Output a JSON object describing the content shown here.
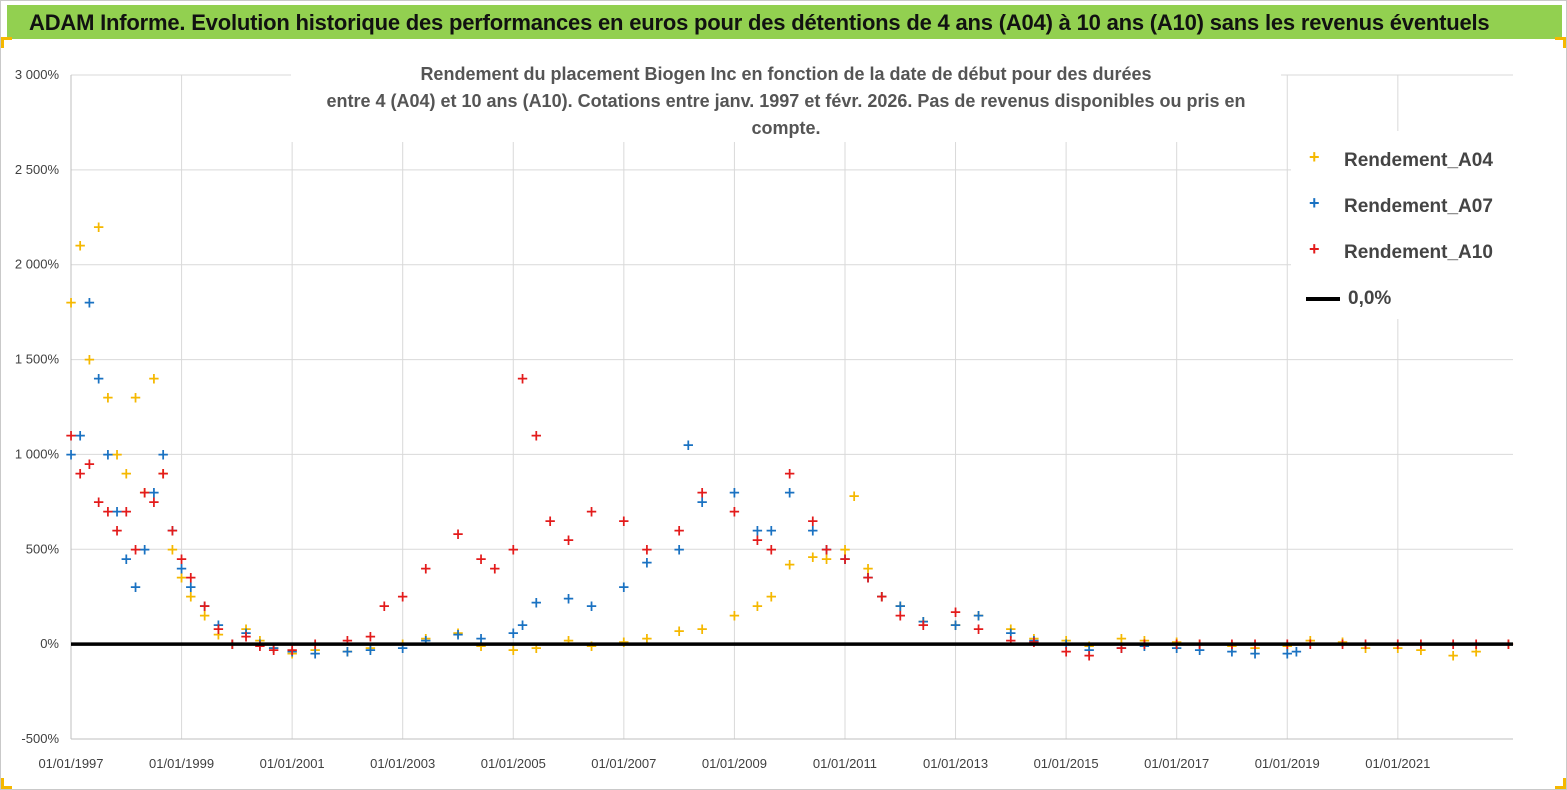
{
  "banner": {
    "title": "ADAM Informe. Evolution historique des performances en euros pour des détentions de 4 ans (A04) à 10 ans (A10) sans les revenus éventuels"
  },
  "chart_data": {
    "type": "scatter",
    "title_line1": "Rendement du placement Biogen Inc en fonction de la date de début pour des durées",
    "title_line2": "entre 4 (A04) et 10 ans (A10).  Cotations entre janv. 1997 et févr. 2026.  Pas de revenus disponibles ou pris en compte.",
    "xlim": [
      "1997-01-01",
      "2023-02-01"
    ],
    "ylim": [
      -500,
      3000
    ],
    "y_ticks": [
      -500,
      0,
      500,
      1000,
      1500,
      2000,
      2500,
      3000
    ],
    "y_tick_labels": [
      "-500%",
      "0%",
      "500%",
      "1 000%",
      "1 500%",
      "2 000%",
      "2 500%",
      "3 000%"
    ],
    "x_ticks": [
      "1997-01-01",
      "1999-01-01",
      "2001-01-01",
      "2003-01-01",
      "2005-01-01",
      "2007-01-01",
      "2009-01-01",
      "2011-01-01",
      "2013-01-01",
      "2015-01-01",
      "2017-01-01",
      "2019-01-01",
      "2021-01-01"
    ],
    "x_tick_labels": [
      "01/01/1997",
      "01/01/1999",
      "01/01/2001",
      "01/01/2003",
      "01/01/2005",
      "01/01/2007",
      "01/01/2009",
      "01/01/2011",
      "01/01/2013",
      "01/01/2015",
      "01/01/2017",
      "01/01/2019",
      "01/01/2021"
    ],
    "grid": true,
    "legend_position": "right",
    "series": [
      {
        "name": "Rendement_A04",
        "color": "#f5b800",
        "marker": "+",
        "x": [
          "1997-01",
          "1997-03",
          "1997-05",
          "1997-07",
          "1997-09",
          "1997-11",
          "1998-01",
          "1998-03",
          "1998-05",
          "1998-07",
          "1998-09",
          "1998-11",
          "1999-01",
          "1999-03",
          "1999-06",
          "1999-09",
          "1999-12",
          "2000-03",
          "2000-06",
          "2000-09",
          "2001-01",
          "2001-06",
          "2002-01",
          "2002-06",
          "2003-01",
          "2003-06",
          "2004-01",
          "2004-06",
          "2005-01",
          "2005-06",
          "2006-01",
          "2006-06",
          "2007-01",
          "2007-06",
          "2008-01",
          "2008-06",
          "2009-01",
          "2009-06",
          "2009-09",
          "2010-01",
          "2010-06",
          "2010-09",
          "2011-01",
          "2011-03",
          "2011-06",
          "2011-09",
          "2012-01",
          "2012-06",
          "2013-01",
          "2013-06",
          "2014-01",
          "2014-06",
          "2015-01",
          "2015-06",
          "2016-01",
          "2016-06",
          "2017-01",
          "2017-06",
          "2018-01",
          "2018-06",
          "2019-01",
          "2019-06",
          "2020-01",
          "2020-06",
          "2021-01",
          "2021-06",
          "2022-01",
          "2022-06",
          "2023-01"
        ],
        "y": [
          1800,
          2100,
          1500,
          2200,
          1300,
          1000,
          900,
          1300,
          800,
          1400,
          900,
          500,
          350,
          250,
          150,
          50,
          0,
          80,
          20,
          -20,
          -50,
          -30,
          -40,
          -20,
          0,
          30,
          60,
          -10,
          -30,
          -20,
          20,
          -10,
          10,
          30,
          70,
          80,
          150,
          200,
          250,
          420,
          460,
          450,
          500,
          780,
          400,
          250,
          200,
          120,
          100,
          150,
          80,
          30,
          20,
          -10,
          30,
          20,
          10,
          0,
          -10,
          -20,
          -10,
          20,
          10,
          -20,
          -20,
          -30,
          -60,
          -40,
          0
        ]
      },
      {
        "name": "Rendement_A07",
        "color": "#1a72c2",
        "marker": "+",
        "x": [
          "1997-01",
          "1997-03",
          "1997-05",
          "1997-07",
          "1997-09",
          "1997-11",
          "1998-01",
          "1998-03",
          "1998-05",
          "1998-07",
          "1998-09",
          "1998-11",
          "1999-01",
          "1999-03",
          "1999-06",
          "1999-09",
          "1999-12",
          "2000-03",
          "2000-06",
          "2000-09",
          "2001-01",
          "2001-06",
          "2002-01",
          "2002-06",
          "2003-01",
          "2003-06",
          "2004-01",
          "2004-06",
          "2005-01",
          "2005-03",
          "2005-06",
          "2006-01",
          "2006-06",
          "2007-01",
          "2007-06",
          "2008-01",
          "2008-03",
          "2008-06",
          "2009-01",
          "2009-06",
          "2009-09",
          "2010-01",
          "2010-06",
          "2010-09",
          "2011-01",
          "2011-06",
          "2011-09",
          "2012-01",
          "2012-06",
          "2013-01",
          "2013-06",
          "2014-01",
          "2014-06",
          "2015-01",
          "2015-06",
          "2016-01",
          "2016-06",
          "2017-01",
          "2017-06",
          "2018-01",
          "2018-06",
          "2019-01",
          "2019-03"
        ],
        "y": [
          1000,
          1100,
          1800,
          1400,
          1000,
          700,
          450,
          300,
          500,
          800,
          1000,
          600,
          400,
          300,
          200,
          100,
          0,
          60,
          0,
          -20,
          -40,
          -50,
          -40,
          -30,
          -20,
          20,
          50,
          30,
          60,
          100,
          220,
          240,
          200,
          300,
          430,
          500,
          1050,
          750,
          800,
          600,
          600,
          800,
          600,
          500,
          450,
          350,
          250,
          200,
          120,
          100,
          150,
          60,
          20,
          0,
          -30,
          -20,
          -10,
          -20,
          -30,
          -40,
          -50,
          -50,
          -40
        ]
      },
      {
        "name": "Rendement_A10",
        "color": "#e31b1b",
        "marker": "+",
        "x": [
          "1997-01",
          "1997-03",
          "1997-05",
          "1997-07",
          "1997-09",
          "1997-11",
          "1998-01",
          "1998-03",
          "1998-05",
          "1998-07",
          "1998-09",
          "1998-11",
          "1999-01",
          "1999-03",
          "1999-06",
          "1999-09",
          "1999-12",
          "2000-03",
          "2000-06",
          "2000-09",
          "2001-01",
          "2001-06",
          "2002-01",
          "2002-06",
          "2002-09",
          "2003-01",
          "2003-06",
          "2004-01",
          "2004-06",
          "2004-09",
          "2005-01",
          "2005-03",
          "2005-06",
          "2005-09",
          "2006-01",
          "2006-06",
          "2007-01",
          "2007-06",
          "2008-01",
          "2008-06",
          "2009-01",
          "2009-06",
          "2009-09",
          "2010-01",
          "2010-06",
          "2010-09",
          "2011-01",
          "2011-06",
          "2011-09",
          "2012-01",
          "2012-06",
          "2013-01",
          "2013-06",
          "2014-01",
          "2014-06",
          "2015-01",
          "2015-06",
          "2016-01",
          "2016-06",
          "2017-01",
          "2017-06",
          "2018-01",
          "2018-06",
          "2019-01",
          "2019-06",
          "2020-01",
          "2020-06",
          "2021-01",
          "2021-06",
          "2022-01",
          "2022-06",
          "2023-01"
        ],
        "y": [
          1100,
          900,
          950,
          750,
          700,
          600,
          700,
          500,
          800,
          750,
          900,
          600,
          450,
          350,
          200,
          80,
          0,
          40,
          -10,
          -30,
          -30,
          0,
          20,
          40,
          200,
          250,
          400,
          580,
          450,
          400,
          500,
          1400,
          1100,
          650,
          550,
          700,
          650,
          500,
          600,
          800,
          700,
          550,
          500,
          900,
          650,
          500,
          450,
          350,
          250,
          150,
          100,
          170,
          80,
          20,
          10,
          -40,
          -60,
          -20,
          0,
          0,
          0,
          0,
          0,
          0,
          0,
          0,
          0,
          0,
          0,
          0,
          0,
          0
        ]
      }
    ],
    "reference_line": {
      "name": "0,0%",
      "y": 0,
      "color": "#000000"
    }
  }
}
